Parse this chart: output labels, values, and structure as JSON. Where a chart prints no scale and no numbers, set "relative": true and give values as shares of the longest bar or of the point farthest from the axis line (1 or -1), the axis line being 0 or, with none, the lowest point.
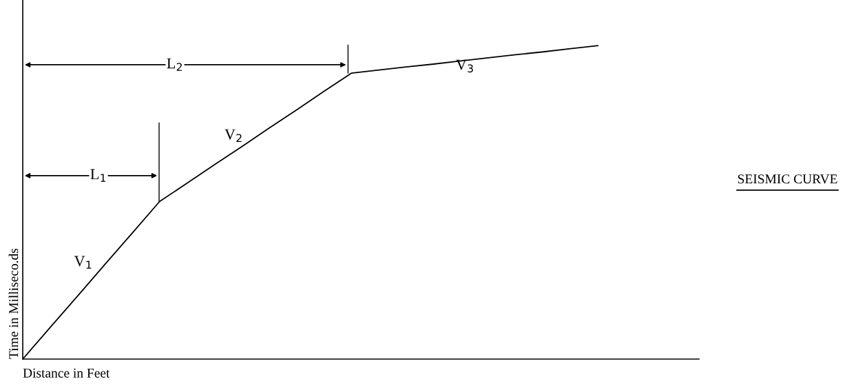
{
  "chart_data": {
    "type": "line",
    "relative": true,
    "title": "SEISMIC CURVE",
    "xlabel": "Distance in Feet",
    "ylabel": "Time in Milliseco.ds",
    "categories": [
      null,
      null,
      null,
      null,
      null,
      null,
      null,
      null,
      null,
      null,
      null,
      null,
      null,
      null,
      null,
      null,
      null,
      null,
      null,
      null,
      null,
      null
    ],
    "series": [
      {
        "color": "#000000",
        "values": [
          0,
          0.101,
          0.201,
          0.302,
          0.402,
          0.503,
          0.561,
          0.62,
          0.678,
          0.737,
          0.795,
          0.854,
          0.912,
          0.922,
          0.932,
          0.941,
          0.951,
          0.961,
          0.971,
          0.98,
          0.99,
          1
        ]
      }
    ],
    "annotations": [
      "L$_{1}$",
      "L$_{2}$",
      "V$_{1}$",
      "V$_{2}$",
      "V$_{3}$"
    ],
    "legend": false,
    "marker": "none",
    "line_style": "solid"
  }
}
